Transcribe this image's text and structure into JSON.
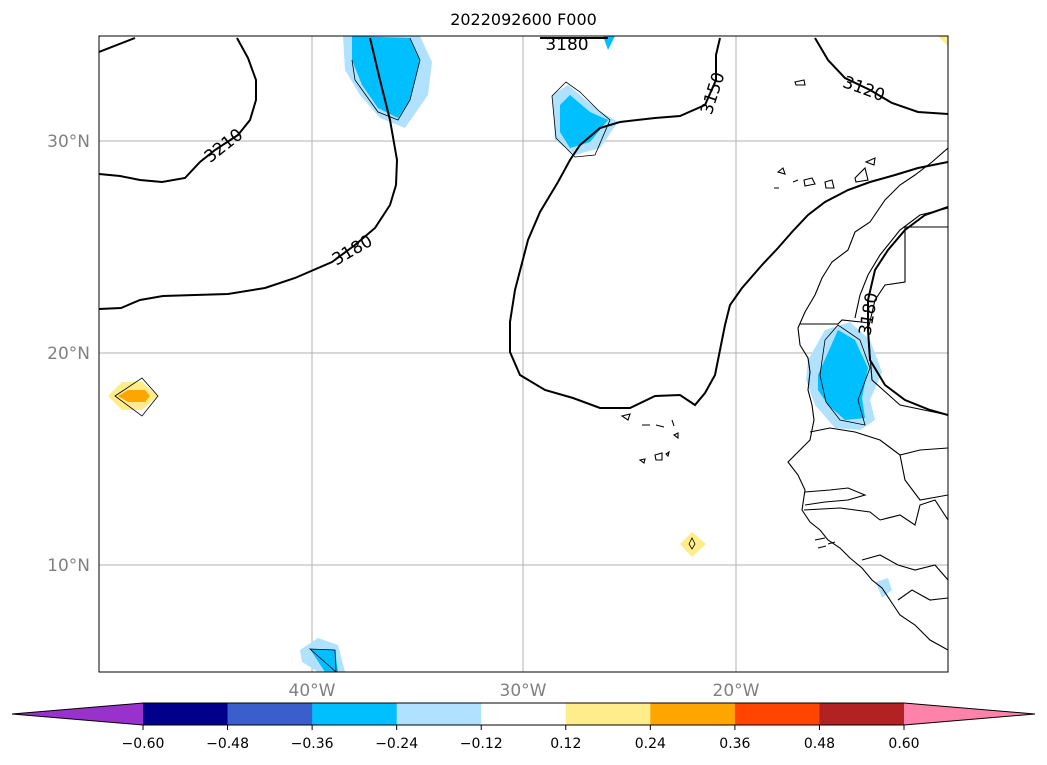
{
  "title": "2022092600 F000",
  "grid": {
    "latitude_labels": [
      "30°N",
      "20°N",
      "10°N"
    ],
    "longitude_labels": [
      "40°W",
      "30°W",
      "20°W"
    ]
  },
  "contour_labels": [
    "3120",
    "3150",
    "3180",
    "3180",
    "3180",
    "3210"
  ],
  "colorbar": {
    "ticks": [
      "−0.60",
      "−0.48",
      "−0.36",
      "−0.24",
      "−0.12",
      "0.12",
      "0.24",
      "0.36",
      "0.48",
      "0.60"
    ],
    "colors": [
      "#9932cc",
      "#00008b",
      "#3a5fcd",
      "#00bfff",
      "#b0e2ff",
      "#ffffff",
      "#ffec8b",
      "#ffa500",
      "#ff4500",
      "#b22222",
      "#ff82ab",
      "#ff82ab"
    ]
  }
}
